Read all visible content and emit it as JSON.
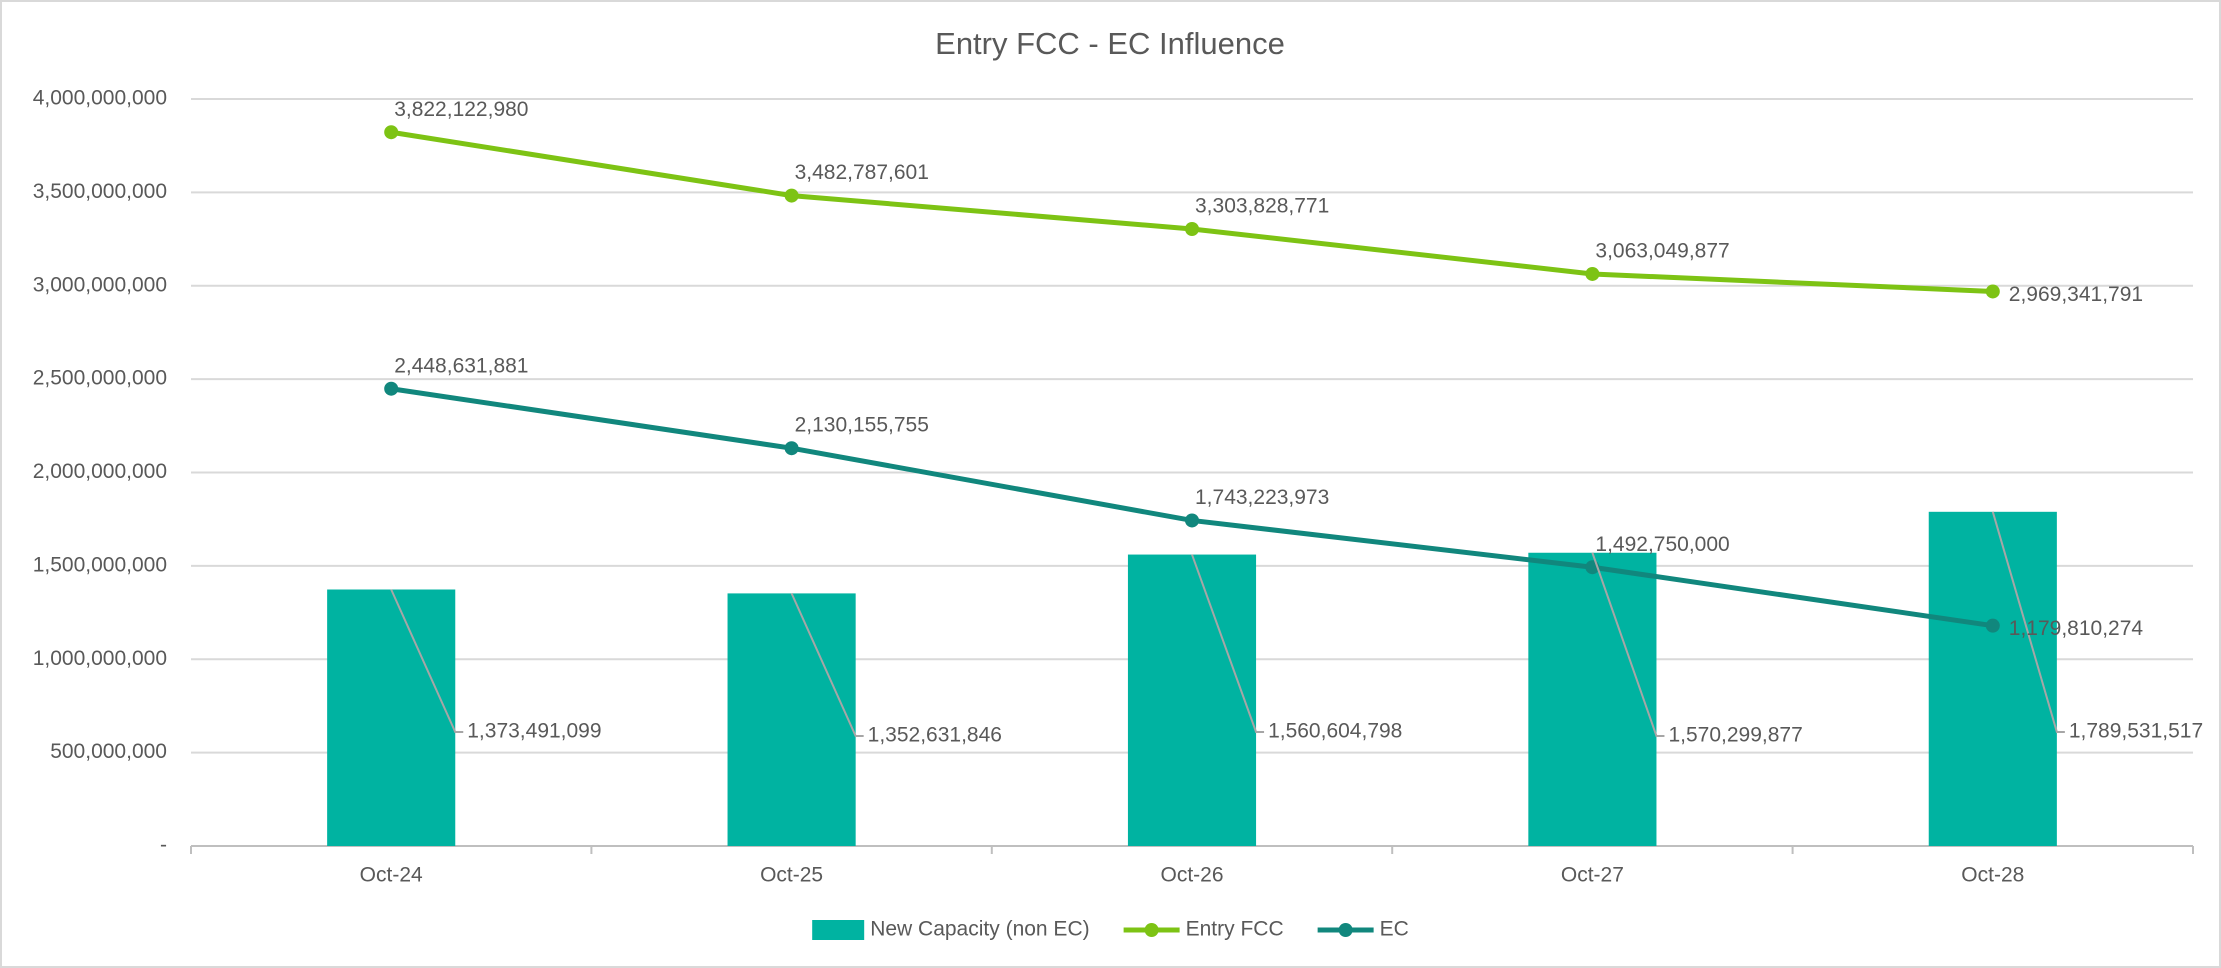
{
  "chart_data": {
    "type": "combo",
    "title": "Entry FCC - EC Influence",
    "categories": [
      "Oct-24",
      "Oct-25",
      "Oct-26",
      "Oct-27",
      "Oct-28"
    ],
    "series": [
      {
        "name": "New Capacity (non EC)",
        "type": "bar",
        "color": "#00b3a1",
        "values": [
          1373491099,
          1352631846,
          1560604798,
          1570299877,
          1789531517
        ],
        "value_labels": [
          "1,373,491,099",
          "1,352,631,846",
          "1,560,604,798",
          "1,570,299,877",
          "1,789,531,517"
        ]
      },
      {
        "name": "Entry FCC",
        "type": "line",
        "color": "#7dc314",
        "values": [
          3822122980,
          3482787601,
          3303828771,
          3063049877,
          2969341791
        ],
        "value_labels": [
          "3,822,122,980",
          "3,482,787,601",
          "3,303,828,771",
          "3,063,049,877",
          "2,969,341,791"
        ]
      },
      {
        "name": "EC",
        "type": "line",
        "color": "#11877d",
        "values": [
          2448631881,
          2130155755,
          1743223973,
          1492750000,
          1179810274
        ],
        "value_labels": [
          "2,448,631,881",
          "2,130,155,755",
          "1,743,223,973",
          "1,492,750,000",
          "1,179,810,274"
        ]
      }
    ],
    "ylim": [
      0,
      4000000000
    ],
    "yticks": [
      {
        "value": 0,
        "label": "-"
      },
      {
        "value": 500000000,
        "label": "500,000,000"
      },
      {
        "value": 1000000000,
        "label": "1,000,000,000"
      },
      {
        "value": 1500000000,
        "label": "1,500,000,000"
      },
      {
        "value": 2000000000,
        "label": "2,000,000,000"
      },
      {
        "value": 2500000000,
        "label": "2,500,000,000"
      },
      {
        "value": 3000000000,
        "label": "3,000,000,000"
      },
      {
        "value": 3500000000,
        "label": "3,500,000,000"
      },
      {
        "value": 4000000000,
        "label": "4,000,000,000"
      }
    ],
    "grid": true,
    "legend": "bottom"
  }
}
